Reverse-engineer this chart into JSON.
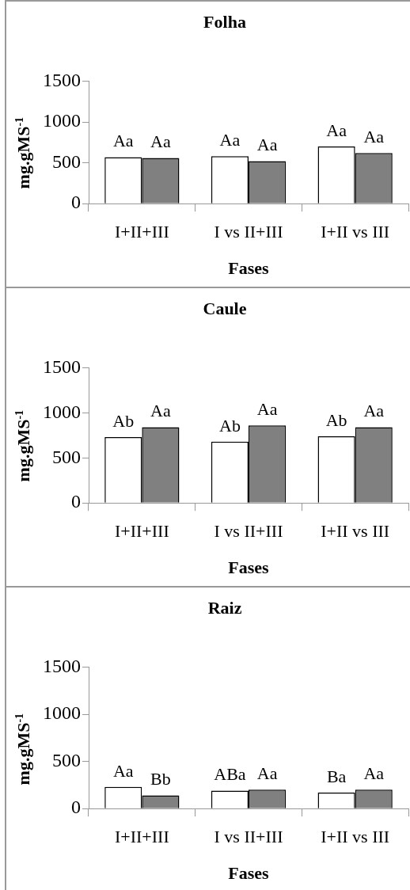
{
  "chart_data": [
    {
      "type": "bar",
      "title": "Folha",
      "xlabel": "Fases",
      "ylabel": "mg.gMS$^{-1}$",
      "categories": [
        "I+II+III",
        "I vs II+III",
        "I+II vs III"
      ],
      "ylim": [
        0,
        1500
      ],
      "yticks": [
        0,
        500,
        1000,
        1500
      ],
      "grid": false,
      "legend": false,
      "series": [
        {
          "color": "#ffffff",
          "values": [
            570,
            580,
            700
          ],
          "value_labels": [
            "Aa",
            "Aa",
            "Aa"
          ]
        },
        {
          "color": "#808080",
          "values": [
            560,
            520,
            620
          ],
          "value_labels": [
            "Aa",
            "Aa",
            "Aa"
          ]
        }
      ]
    },
    {
      "type": "bar",
      "title": "Caule",
      "xlabel": "Fases",
      "ylabel": "mg.gMS$^{-1}$",
      "categories": [
        "I+II+III",
        "I vs II+III",
        "I+II vs III"
      ],
      "ylim": [
        0,
        1500
      ],
      "yticks": [
        0,
        500,
        1000,
        1500
      ],
      "grid": false,
      "legend": false,
      "series": [
        {
          "color": "#ffffff",
          "values": [
            730,
            680,
            740
          ],
          "value_labels": [
            "Ab",
            "Ab",
            "Ab"
          ]
        },
        {
          "color": "#808080",
          "values": [
            840,
            860,
            840
          ],
          "value_labels": [
            "Aa",
            "Aa",
            "Aa"
          ]
        }
      ]
    },
    {
      "type": "bar",
      "title": "Raiz",
      "xlabel": "Fases",
      "ylabel": "mg.gMS$^{-1}$",
      "categories": [
        "I+II+III",
        "I vs II+III",
        "I+II vs III"
      ],
      "ylim": [
        0,
        1500
      ],
      "yticks": [
        0,
        500,
        1000,
        1500
      ],
      "grid": false,
      "legend": false,
      "series": [
        {
          "color": "#ffffff",
          "values": [
            230,
            190,
            170
          ],
          "value_labels": [
            "Aa",
            "ABa",
            "Ba"
          ]
        },
        {
          "color": "#808080",
          "values": [
            140,
            200,
            200
          ],
          "value_labels": [
            "Bb",
            "Aa",
            "Aa"
          ]
        }
      ]
    }
  ]
}
